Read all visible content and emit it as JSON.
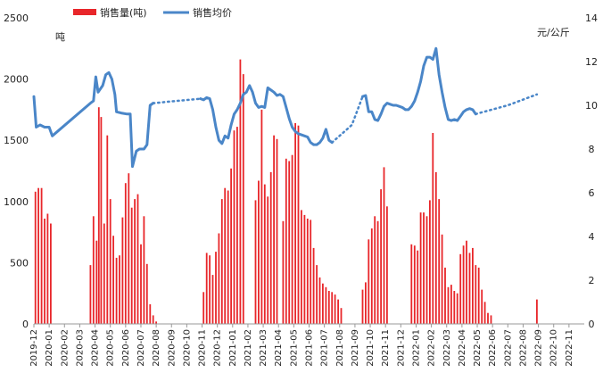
{
  "chart_data": {
    "type": "bar+line",
    "title": "",
    "legend": [
      {
        "name": "销售量(吨)",
        "color": "#e8262a",
        "kind": "bar"
      },
      {
        "name": "销售均价",
        "color": "#4a86c8",
        "kind": "line"
      }
    ],
    "legend_position": "top",
    "y_left": {
      "unit": "吨",
      "min": 0,
      "max": 2500,
      "ticks": [
        0,
        500,
        1000,
        1500,
        2000,
        2500
      ]
    },
    "y_right": {
      "unit": "元/公斤",
      "min": 0,
      "max": 14,
      "ticks": [
        0,
        2,
        4,
        6,
        8,
        10,
        12,
        14
      ]
    },
    "x_labels": [
      "2019-12",
      "2020-01",
      "2020-02",
      "2020-03",
      "2020-04",
      "2020-05",
      "2020-06",
      "2020-07",
      "2020-08",
      "2020-09",
      "2020-10",
      "2020-11",
      "2020-12",
      "2021-01",
      "2021-02",
      "2021-03",
      "2021-04",
      "2021-05",
      "2021-06",
      "2021-07",
      "2021-08",
      "2021-09",
      "2021-10",
      "2021-11",
      "2021-12",
      "2022-01",
      "2022-02",
      "2022-03",
      "2022-04",
      "2022-05",
      "2022-06",
      "2022-07",
      "2022-08",
      "2022-09",
      "2022-10",
      "2022-11"
    ],
    "x_domain": [
      0,
      36
    ],
    "bars": [
      [
        0.1,
        1080
      ],
      [
        0.3,
        1110
      ],
      [
        0.5,
        1110
      ],
      [
        0.7,
        860
      ],
      [
        0.9,
        900
      ],
      [
        1.1,
        820
      ],
      [
        3.7,
        480
      ],
      [
        3.9,
        880
      ],
      [
        4.1,
        680
      ],
      [
        4.25,
        1770
      ],
      [
        4.4,
        1690
      ],
      [
        4.6,
        820
      ],
      [
        4.8,
        1540
      ],
      [
        5.0,
        1020
      ],
      [
        5.2,
        720
      ],
      [
        5.4,
        540
      ],
      [
        5.6,
        560
      ],
      [
        5.8,
        870
      ],
      [
        6.0,
        1150
      ],
      [
        6.2,
        1230
      ],
      [
        6.4,
        950
      ],
      [
        6.6,
        1020
      ],
      [
        6.8,
        1060
      ],
      [
        7.0,
        650
      ],
      [
        7.2,
        880
      ],
      [
        7.4,
        490
      ],
      [
        7.6,
        160
      ],
      [
        7.8,
        70
      ],
      [
        8.0,
        20
      ],
      [
        11.1,
        260
      ],
      [
        11.3,
        580
      ],
      [
        11.5,
        560
      ],
      [
        11.7,
        400
      ],
      [
        11.9,
        590
      ],
      [
        12.1,
        740
      ],
      [
        12.3,
        1020
      ],
      [
        12.5,
        1110
      ],
      [
        12.7,
        1090
      ],
      [
        12.9,
        1270
      ],
      [
        13.1,
        1580
      ],
      [
        13.3,
        1610
      ],
      [
        13.5,
        2160
      ],
      [
        13.7,
        2040
      ],
      [
        14.5,
        1010
      ],
      [
        14.7,
        1170
      ],
      [
        14.9,
        1750
      ],
      [
        15.1,
        1140
      ],
      [
        15.3,
        1040
      ],
      [
        15.5,
        1240
      ],
      [
        15.7,
        1540
      ],
      [
        15.9,
        1510
      ],
      [
        16.3,
        840
      ],
      [
        16.5,
        1350
      ],
      [
        16.7,
        1330
      ],
      [
        16.9,
        1380
      ],
      [
        17.1,
        1640
      ],
      [
        17.3,
        1620
      ],
      [
        17.5,
        930
      ],
      [
        17.7,
        890
      ],
      [
        17.9,
        860
      ],
      [
        18.1,
        850
      ],
      [
        18.3,
        620
      ],
      [
        18.5,
        480
      ],
      [
        18.7,
        380
      ],
      [
        18.9,
        330
      ],
      [
        19.1,
        300
      ],
      [
        19.3,
        270
      ],
      [
        19.5,
        260
      ],
      [
        19.7,
        240
      ],
      [
        19.9,
        200
      ],
      [
        20.1,
        130
      ],
      [
        21.5,
        280
      ],
      [
        21.7,
        340
      ],
      [
        21.9,
        690
      ],
      [
        22.1,
        780
      ],
      [
        22.3,
        880
      ],
      [
        22.5,
        840
      ],
      [
        22.7,
        1100
      ],
      [
        22.9,
        1280
      ],
      [
        23.1,
        960
      ],
      [
        24.7,
        650
      ],
      [
        24.9,
        640
      ],
      [
        25.1,
        600
      ],
      [
        25.3,
        910
      ],
      [
        25.5,
        910
      ],
      [
        25.7,
        880
      ],
      [
        25.9,
        1010
      ],
      [
        26.1,
        1560
      ],
      [
        26.3,
        1240
      ],
      [
        26.5,
        1020
      ],
      [
        26.7,
        730
      ],
      [
        26.9,
        460
      ],
      [
        27.1,
        300
      ],
      [
        27.3,
        320
      ],
      [
        27.5,
        270
      ],
      [
        27.7,
        250
      ],
      [
        27.9,
        570
      ],
      [
        28.1,
        640
      ],
      [
        28.3,
        680
      ],
      [
        28.5,
        580
      ],
      [
        28.7,
        620
      ],
      [
        28.9,
        480
      ],
      [
        29.1,
        460
      ],
      [
        29.3,
        280
      ],
      [
        29.5,
        180
      ],
      [
        29.7,
        90
      ],
      [
        29.9,
        70
      ],
      [
        32.9,
        200
      ]
    ],
    "price_line": [
      {
        "style": "solid",
        "points": [
          [
            0.0,
            10.4
          ],
          [
            0.15,
            9.0
          ],
          [
            0.4,
            9.1
          ],
          [
            0.7,
            9.0
          ],
          [
            1.0,
            9.0
          ],
          [
            1.2,
            8.6
          ],
          [
            3.7,
            10.1
          ],
          [
            3.9,
            10.2
          ],
          [
            4.05,
            11.3
          ],
          [
            4.2,
            10.6
          ],
          [
            4.5,
            10.9
          ],
          [
            4.7,
            11.4
          ],
          [
            4.9,
            11.5
          ],
          [
            5.1,
            11.2
          ],
          [
            5.3,
            10.5
          ],
          [
            5.4,
            9.7
          ],
          [
            5.7,
            9.65
          ],
          [
            6.1,
            9.6
          ],
          [
            6.3,
            9.6
          ],
          [
            6.45,
            7.2
          ],
          [
            6.7,
            7.9
          ],
          [
            6.9,
            8.0
          ],
          [
            7.2,
            8.0
          ],
          [
            7.4,
            8.2
          ],
          [
            7.6,
            10.0
          ],
          [
            7.8,
            10.1
          ]
        ]
      },
      {
        "style": "dotted",
        "points": [
          [
            7.8,
            10.1
          ],
          [
            10.9,
            10.3
          ]
        ]
      },
      {
        "style": "solid",
        "points": [
          [
            10.9,
            10.3
          ],
          [
            11.1,
            10.25
          ],
          [
            11.3,
            10.35
          ],
          [
            11.5,
            10.3
          ],
          [
            11.7,
            9.8
          ],
          [
            11.9,
            9.0
          ],
          [
            12.1,
            8.4
          ],
          [
            12.3,
            8.25
          ],
          [
            12.5,
            8.6
          ],
          [
            12.7,
            8.5
          ],
          [
            12.9,
            9.1
          ],
          [
            13.1,
            9.6
          ],
          [
            13.3,
            9.8
          ],
          [
            13.5,
            10.1
          ],
          [
            13.7,
            10.5
          ],
          [
            13.9,
            10.6
          ],
          [
            14.1,
            10.9
          ],
          [
            14.3,
            10.6
          ],
          [
            14.5,
            10.1
          ],
          [
            14.7,
            9.9
          ],
          [
            14.9,
            9.95
          ],
          [
            15.1,
            9.9
          ],
          [
            15.3,
            10.8
          ],
          [
            15.5,
            10.7
          ],
          [
            15.7,
            10.6
          ],
          [
            15.9,
            10.45
          ],
          [
            16.1,
            10.5
          ],
          [
            16.3,
            10.4
          ],
          [
            16.5,
            9.9
          ],
          [
            16.7,
            9.4
          ],
          [
            16.9,
            9.0
          ],
          [
            17.1,
            8.8
          ],
          [
            17.3,
            8.7
          ],
          [
            17.5,
            8.65
          ],
          [
            17.7,
            8.6
          ],
          [
            17.9,
            8.55
          ],
          [
            18.1,
            8.3
          ],
          [
            18.3,
            8.2
          ],
          [
            18.5,
            8.2
          ],
          [
            18.7,
            8.3
          ],
          [
            18.9,
            8.5
          ],
          [
            19.1,
            8.9
          ],
          [
            19.3,
            8.4
          ],
          [
            19.5,
            8.3
          ]
        ]
      },
      {
        "style": "dotted",
        "points": [
          [
            19.5,
            8.3
          ],
          [
            20.8,
            9.1
          ],
          [
            21.5,
            10.4
          ]
        ]
      },
      {
        "style": "solid",
        "points": [
          [
            21.5,
            10.4
          ],
          [
            21.7,
            10.45
          ],
          [
            21.9,
            9.7
          ],
          [
            22.1,
            9.7
          ],
          [
            22.3,
            9.35
          ],
          [
            22.5,
            9.3
          ],
          [
            22.7,
            9.6
          ],
          [
            22.9,
            9.95
          ],
          [
            23.1,
            10.1
          ],
          [
            23.3,
            10.05
          ],
          [
            23.5,
            10.0
          ],
          [
            23.7,
            10.0
          ],
          [
            23.9,
            9.95
          ],
          [
            24.1,
            9.9
          ],
          [
            24.3,
            9.8
          ],
          [
            24.5,
            9.8
          ],
          [
            24.7,
            9.95
          ],
          [
            24.9,
            10.2
          ],
          [
            25.1,
            10.6
          ],
          [
            25.3,
            11.1
          ],
          [
            25.5,
            11.8
          ],
          [
            25.7,
            12.2
          ],
          [
            25.9,
            12.2
          ],
          [
            26.1,
            12.1
          ],
          [
            26.3,
            12.6
          ],
          [
            26.5,
            11.4
          ],
          [
            26.7,
            10.6
          ],
          [
            26.9,
            9.9
          ],
          [
            27.1,
            9.35
          ],
          [
            27.3,
            9.3
          ],
          [
            27.5,
            9.35
          ],
          [
            27.7,
            9.3
          ],
          [
            27.9,
            9.5
          ],
          [
            28.1,
            9.7
          ],
          [
            28.3,
            9.8
          ],
          [
            28.5,
            9.85
          ],
          [
            28.7,
            9.8
          ],
          [
            28.9,
            9.6
          ]
        ]
      },
      {
        "style": "dotted",
        "points": [
          [
            28.9,
            9.6
          ],
          [
            31.0,
            10.0
          ],
          [
            32.9,
            10.5
          ]
        ]
      }
    ]
  }
}
